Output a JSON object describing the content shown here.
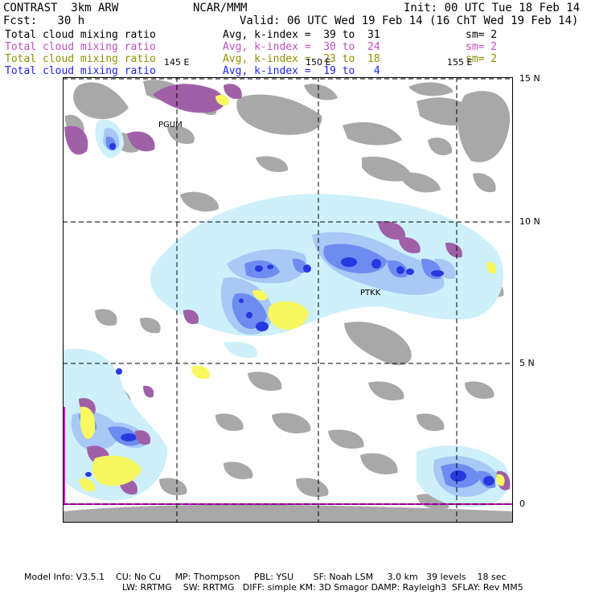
{
  "header": {
    "model": "CONTRAST  3km ARW",
    "org": "NCAR/MMM",
    "init": "Init: 00 UTC Tue 18 Feb 14",
    "fcst": "Fcst:   30 h",
    "valid": "Valid: 06 UTC Wed 19 Feb 14 (16 ChT Wed 19 Feb 14)"
  },
  "fields": [
    {
      "name": "Total cloud mixing ratio",
      "range": "Avg, k-index =  39 to  31",
      "sm": "sm= 2",
      "color": "#000000"
    },
    {
      "name": "Total cloud mixing ratio",
      "range": "Avg, k-index =  30 to  24",
      "sm": "sm= 2",
      "color": "#c050c0"
    },
    {
      "name": "Total cloud mixing ratio",
      "range": "Avg, k-index =  23 to  18",
      "sm": "sm= 2",
      "color": "#909000"
    },
    {
      "name": "Total cloud mixing ratio",
      "range": "Avg, k-index =  19 to   4",
      "sm": "",
      "color": "#2020ff"
    }
  ],
  "map": {
    "lon_labels": [
      "145 E",
      "150 E",
      "155 E"
    ],
    "lat_labels": [
      "15 N",
      "10 N",
      "5 N",
      "0"
    ],
    "stations": [
      "PGUM",
      "PTKK"
    ]
  },
  "footer": {
    "line1": "Model Info: V3.5.1    CU: No Cu     MP: Thompson     PBL: YSU       SF: Noah LSM     3.0 km   39 levels    18 sec",
    "line2": "LW: RRTMG    SW: RRTMG   DIFF: simple KM: 3D Smagor DAMP: Rayleigh3  SFLAY: Rev MM5"
  },
  "colors": {
    "land": "#a8a8a8",
    "light_blue": "#cdf0fb",
    "mid_blue": "#a8c8f5",
    "blue": "#6e8cf0",
    "deep_blue": "#2838e0",
    "magenta": "#a060a8",
    "yellow": "#f8f860",
    "grid": "#000000",
    "boundary": "#e000e0"
  }
}
